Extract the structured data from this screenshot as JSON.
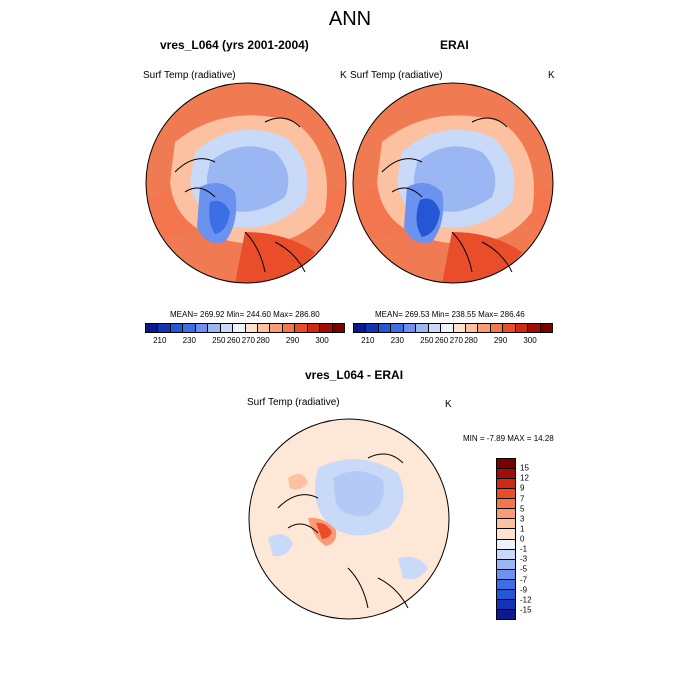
{
  "figure": {
    "title": "ANN"
  },
  "panels": [
    {
      "id": "model",
      "title": "vres_L064 (yrs 2001-2004)",
      "variable": "Surf Temp (radiative)",
      "units": "K",
      "stats": "MEAN= 269.92  Min= 244.60  Max= 286.80"
    },
    {
      "id": "obs",
      "title": "ERAI",
      "variable": "Surf Temp (radiative)",
      "units": "K",
      "stats": "MEAN= 269.53  Min= 238.55  Max= 286.46"
    },
    {
      "id": "diff",
      "title": "vres_L064 - ERAI",
      "variable": "Surf Temp (radiative)",
      "units": "K",
      "stats": "MIN =  -7.89 MAX =  14.28"
    }
  ],
  "colorbar_abs": {
    "colors": [
      "#0a1a8c",
      "#1432b4",
      "#2456d6",
      "#3b6fe6",
      "#6a92ee",
      "#9ab6f3",
      "#c8daf8",
      "#eef3fb",
      "#fde3cf",
      "#fbc1a0",
      "#f99c76",
      "#f4764f",
      "#ea4d2a",
      "#cf2a14",
      "#a30d08",
      "#7a0000"
    ],
    "ticks": [
      "210",
      "230",
      "250",
      "260",
      "270",
      "280",
      "290",
      "300"
    ]
  },
  "colorbar_diff": {
    "colors": [
      "#7a0000",
      "#a30d08",
      "#cf2a14",
      "#ea4d2a",
      "#f4764f",
      "#f99c76",
      "#fbc1a0",
      "#fde3cf",
      "#eef3fb",
      "#c8daf8",
      "#9ab6f3",
      "#6a92ee",
      "#3b6fe6",
      "#2456d6",
      "#1432b4",
      "#0a1a8c"
    ],
    "ticks": [
      "15",
      "12",
      "9",
      "7",
      "5",
      "3",
      "1",
      "0",
      "-1",
      "-3",
      "-5",
      "-7",
      "-9",
      "-12",
      "-15"
    ]
  },
  "palette": {
    "ocean_warm": "#f07a52",
    "land_warm": "#fab79a",
    "ice": "#6a92ee",
    "deep_ice": "#3b6fe6",
    "diff_bg": "#fde7d6",
    "diff_cool": "#c8daf8"
  }
}
